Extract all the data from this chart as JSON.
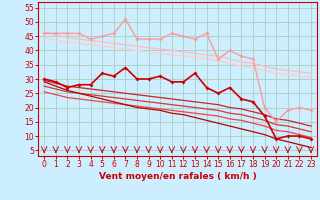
{
  "xlabel": "Vent moyen/en rafales ( km/h )",
  "bg_color": "#cceeff",
  "grid_color": "#aaccbb",
  "x": [
    0,
    1,
    2,
    3,
    4,
    5,
    6,
    7,
    8,
    9,
    10,
    11,
    12,
    13,
    14,
    15,
    16,
    17,
    18,
    19,
    20,
    21,
    22,
    23
  ],
  "ylim": [
    3,
    57
  ],
  "yticks": [
    5,
    10,
    15,
    20,
    25,
    30,
    35,
    40,
    45,
    50,
    55
  ],
  "lines": [
    {
      "y": [
        46,
        46,
        46,
        46,
        44,
        45,
        46,
        51,
        44,
        44,
        44,
        46,
        45,
        44,
        46,
        37,
        40,
        38,
        37,
        20,
        15,
        19,
        20,
        19
      ],
      "color": "#ff9999",
      "lw": 1.0,
      "marker": "D",
      "ms": 2.0,
      "zorder": 4
    },
    {
      "y": [
        46.5,
        45.5,
        44.5,
        44.0,
        43.5,
        43.0,
        42.5,
        42.0,
        41.5,
        41.0,
        40.5,
        40.0,
        39.5,
        39.0,
        38.5,
        38.0,
        37.0,
        36.0,
        35.5,
        34.5,
        33.5,
        33.0,
        32.5,
        32.0
      ],
      "color": "#ffbbbb",
      "lw": 0.9,
      "marker": null,
      "ms": 0,
      "zorder": 2
    },
    {
      "y": [
        44.5,
        43.5,
        43.0,
        42.5,
        42.0,
        41.5,
        41.0,
        40.5,
        40.0,
        39.5,
        39.0,
        38.5,
        38.0,
        37.5,
        37.0,
        36.5,
        35.5,
        34.5,
        34.0,
        33.0,
        32.0,
        31.5,
        31.0,
        30.5
      ],
      "color": "#ffcccc",
      "lw": 0.9,
      "marker": null,
      "ms": 0,
      "zorder": 2
    },
    {
      "y": [
        30,
        29,
        27,
        28,
        28,
        32,
        31,
        34,
        30,
        30,
        31,
        29,
        29,
        32,
        27,
        25,
        27,
        23,
        22,
        17,
        9,
        10,
        10,
        9
      ],
      "color": "#cc0000",
      "lw": 1.2,
      "marker": "D",
      "ms": 2.0,
      "zorder": 5
    },
    {
      "y": [
        29.5,
        28.5,
        27.5,
        27.0,
        26.5,
        26.0,
        25.5,
        25.0,
        24.5,
        24.0,
        23.5,
        23.0,
        22.5,
        22.0,
        21.5,
        21.0,
        20.0,
        19.5,
        18.5,
        17.5,
        16.0,
        15.5,
        14.5,
        13.5
      ],
      "color": "#cc2222",
      "lw": 0.9,
      "marker": null,
      "ms": 0,
      "zorder": 3
    },
    {
      "y": [
        27.5,
        26.5,
        25.5,
        25.0,
        24.5,
        24.0,
        23.5,
        23.0,
        22.5,
        22.0,
        21.5,
        21.0,
        20.5,
        20.0,
        19.5,
        19.0,
        18.0,
        17.5,
        16.5,
        15.5,
        14.0,
        13.5,
        12.5,
        11.5
      ],
      "color": "#dd3333",
      "lw": 0.9,
      "marker": null,
      "ms": 0,
      "zorder": 3
    },
    {
      "y": [
        25.5,
        24.5,
        23.5,
        23.0,
        22.5,
        22.0,
        21.5,
        21.0,
        20.5,
        20.0,
        19.5,
        19.0,
        18.5,
        18.0,
        17.5,
        17.0,
        16.0,
        15.5,
        14.5,
        13.5,
        12.0,
        11.5,
        10.5,
        9.5
      ],
      "color": "#ee4444",
      "lw": 0.9,
      "marker": null,
      "ms": 0,
      "zorder": 3
    },
    {
      "y": [
        29.0,
        27.5,
        26.0,
        25.0,
        24.0,
        23.0,
        22.0,
        21.0,
        20.0,
        19.5,
        19.0,
        18.0,
        17.5,
        16.5,
        15.5,
        14.5,
        13.5,
        12.5,
        11.5,
        10.5,
        9.0,
        8.0,
        7.0,
        6.0
      ],
      "color": "#bb0000",
      "lw": 0.9,
      "marker": null,
      "ms": 0,
      "zorder": 3
    }
  ],
  "spine_color": "#cc0000",
  "tick_color": "#cc0000",
  "label_color": "#cc0000",
  "xlabel_fontsize": 6.5,
  "tick_fontsize": 5.5
}
